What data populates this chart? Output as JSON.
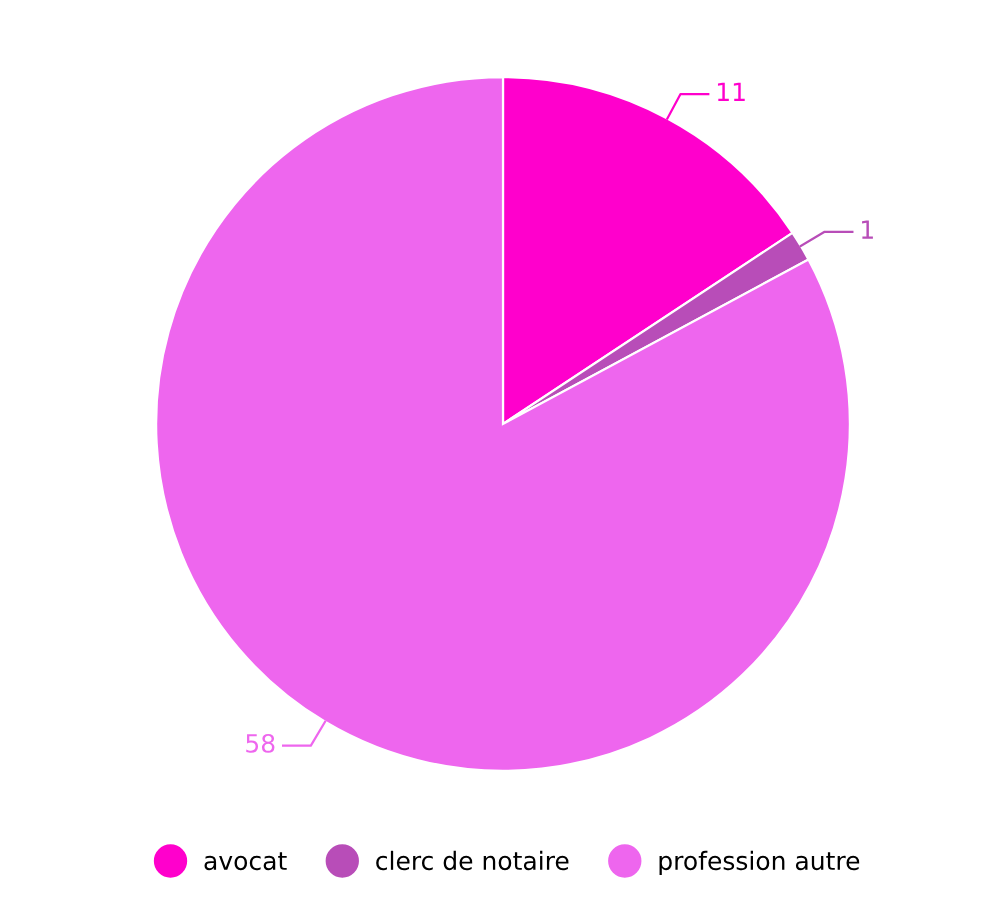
{
  "chart_data": {
    "type": "pie",
    "categories": [
      "avocat",
      "clerc de notaire",
      "profession autre"
    ],
    "values": [
      11,
      1,
      58
    ],
    "colors": [
      "#ff00cc",
      "#b84db8",
      "#ee66ee"
    ],
    "data_labels": true,
    "legend": "bottom"
  }
}
